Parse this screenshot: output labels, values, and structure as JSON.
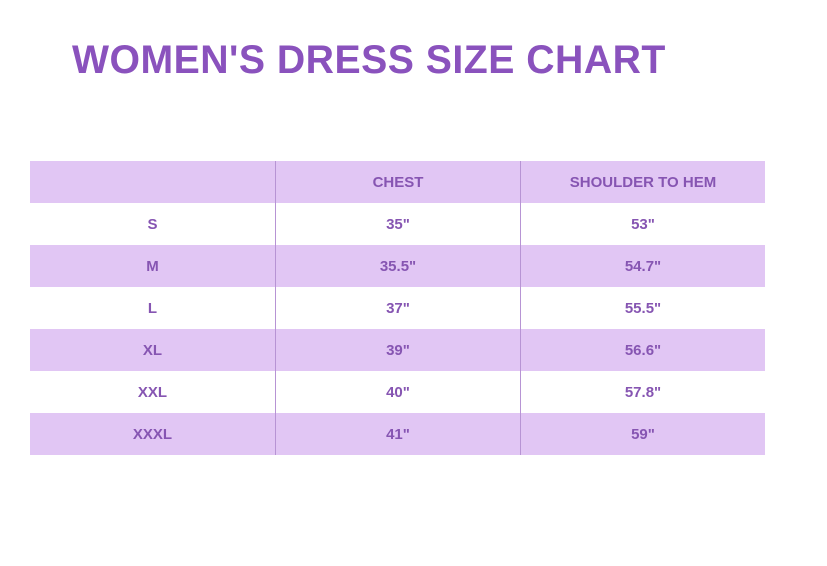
{
  "title": "WOMEN'S DRESS SIZE CHART",
  "colors": {
    "title": "#8a52bd",
    "band": "#e1c6f4",
    "text": "#8655b2"
  },
  "table": {
    "headers": [
      "",
      "CHEST",
      "SHOULDER TO HEM"
    ],
    "rows": [
      [
        "S",
        "35\"",
        "53\""
      ],
      [
        "M",
        "35.5\"",
        "54.7\""
      ],
      [
        "L",
        "37\"",
        "55.5\""
      ],
      [
        "XL",
        "39\"",
        "56.6\""
      ],
      [
        "XXL",
        "40\"",
        "57.8\""
      ],
      [
        "XXXL",
        "41\"",
        "59\""
      ]
    ]
  }
}
